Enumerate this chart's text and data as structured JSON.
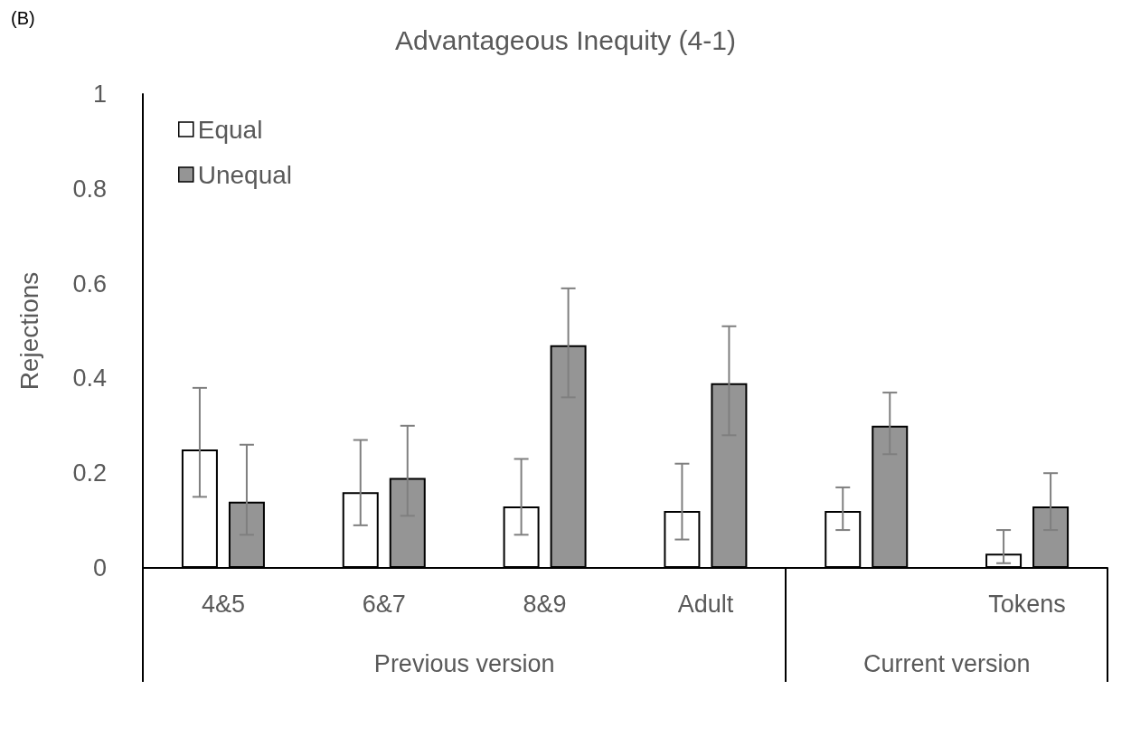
{
  "chart_data": {
    "type": "bar",
    "title": "Advantageous Inequity (4-1)",
    "ylabel": "Rejections",
    "categories": [
      "4&5",
      "6&7",
      "8&9",
      "Adult",
      null,
      "Tokens"
    ],
    "series": [
      {
        "name": "Equal",
        "color": "#ffffff",
        "values": [
          0.25,
          0.16,
          0.13,
          0.12,
          0.12,
          0.03
        ],
        "errors": [
          [
            0.15,
            0.38
          ],
          [
            0.09,
            0.27
          ],
          [
            0.07,
            0.23
          ],
          [
            0.06,
            0.22
          ],
          [
            0.08,
            0.17
          ],
          [
            0.01,
            0.08
          ]
        ]
      },
      {
        "name": "Unequal",
        "color": "#959595",
        "values": [
          0.14,
          0.19,
          0.47,
          0.39,
          0.3,
          0.13
        ],
        "errors": [
          [
            0.07,
            0.26
          ],
          [
            0.11,
            0.3
          ],
          [
            0.36,
            0.59
          ],
          [
            0.28,
            0.51
          ],
          [
            0.24,
            0.37
          ],
          [
            0.08,
            0.2
          ]
        ]
      }
    ],
    "ylim": [
      0,
      1
    ],
    "yticks": [
      0,
      0.2,
      0.4,
      0.6,
      0.8,
      1
    ],
    "grid": false,
    "legend": "top left",
    "annotations": [
      "(B)",
      "Previous version",
      "Current version"
    ]
  }
}
